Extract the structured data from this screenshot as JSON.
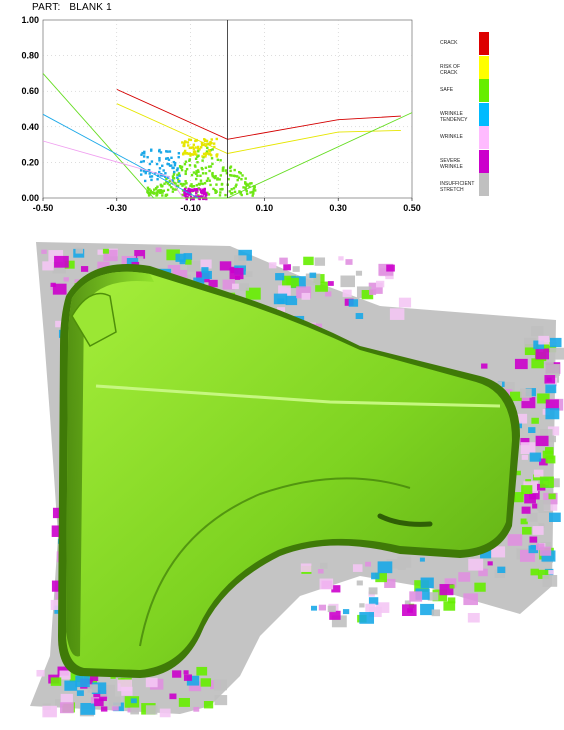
{
  "header": {
    "part_label": "PART:",
    "part_name": "BLANK 1"
  },
  "chart_data": {
    "type": "scatter",
    "title": "",
    "xlabel": "",
    "ylabel": "",
    "xlim": [
      -0.5,
      0.5
    ],
    "ylim": [
      0.0,
      1.0
    ],
    "x_ticks": [
      "-0.50",
      "-0.30",
      "-0.10",
      "0.10",
      "0.30",
      "0.50"
    ],
    "y_ticks": [
      "0.00",
      "0.20",
      "0.40",
      "0.60",
      "0.80",
      "1.00"
    ],
    "grid": true,
    "center_line_x": 0.0,
    "curves": [
      {
        "zone": "crack",
        "color": "#d40000",
        "points": [
          [
            -0.3,
            0.61
          ],
          [
            0.0,
            0.33
          ],
          [
            0.3,
            0.44
          ],
          [
            0.47,
            0.46
          ]
        ]
      },
      {
        "zone": "risk-of-crack",
        "color": "#e6e600",
        "points": [
          [
            -0.3,
            0.53
          ],
          [
            0.0,
            0.25
          ],
          [
            0.3,
            0.37
          ],
          [
            0.47,
            0.38
          ]
        ]
      },
      {
        "zone": "safe",
        "color": "#66dd22",
        "points": [
          [
            -0.5,
            0.7
          ],
          [
            -0.2,
            0.0
          ],
          [
            0.0,
            0.0
          ],
          [
            0.5,
            0.48
          ]
        ]
      },
      {
        "zone": "wrinkle-tendency",
        "color": "#1aa8e8",
        "points": [
          [
            -0.5,
            0.47
          ],
          [
            -0.08,
            0.0
          ]
        ]
      },
      {
        "zone": "wrinkle",
        "color": "#f0a0f0",
        "points": [
          [
            -0.5,
            0.32
          ],
          [
            -0.16,
            0.12
          ],
          [
            -0.12,
            0.0
          ]
        ]
      }
    ],
    "scatter_clusters": [
      {
        "zone": "safe",
        "color": "#6ee614",
        "x_range": [
          -0.22,
          0.08
        ],
        "y_range": [
          0.02,
          0.32
        ]
      },
      {
        "zone": "risk-of-crack",
        "color": "#e6e600",
        "x_range": [
          -0.13,
          -0.03
        ],
        "y_range": [
          0.24,
          0.34
        ]
      },
      {
        "zone": "wrinkle-tendency",
        "color": "#1aa8e8",
        "x_range": [
          -0.24,
          -0.13
        ],
        "y_range": [
          0.1,
          0.28
        ]
      },
      {
        "zone": "severe-wrinkle",
        "color": "#cc00cc",
        "x_range": [
          -0.12,
          -0.06
        ],
        "y_range": [
          0.0,
          0.06
        ]
      }
    ]
  },
  "legend": [
    {
      "label": "CRACK",
      "color": "#dd0000"
    },
    {
      "label": "RISK OF CRACK",
      "color": "#ffff00"
    },
    {
      "label": "SAFE",
      "color": "#66ee00"
    },
    {
      "label": "WRINKLE TENDENCY",
      "color": "#00bbff"
    },
    {
      "label": "WRINKLE",
      "color": "#ffbbff"
    },
    {
      "label": "SEVERE WRINKLE",
      "color": "#cc00cc"
    },
    {
      "label": "INSUFFICIENT STRETCH",
      "color": "#c0c0c0"
    }
  ],
  "blank_view": {
    "part_color": "#7ed321",
    "part_shadow_color": "#3f7a08",
    "flange_colors": [
      "#c0c0c0",
      "#e090e0",
      "#cc00cc",
      "#66ee00",
      "#1aa8e8",
      "#f4c6f4"
    ]
  }
}
